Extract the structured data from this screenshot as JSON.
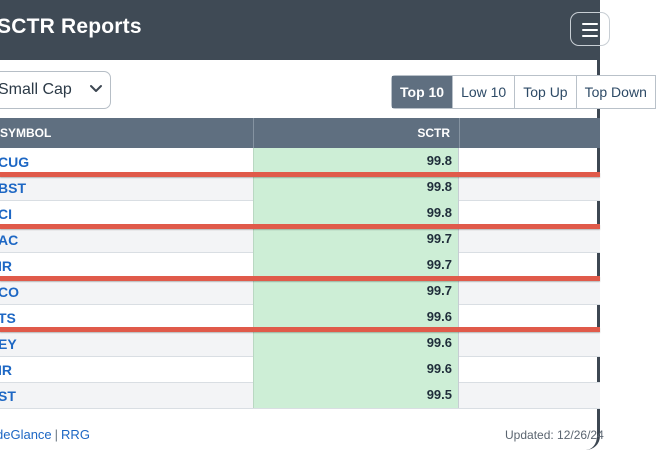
{
  "header": {
    "title": "SCTR Reports",
    "menu_icon": "hamburger-menu-icon"
  },
  "controls": {
    "category_select": {
      "value": "Small Cap"
    },
    "tabs": [
      "Top 10",
      "Low 10",
      "Top Up",
      "Top Down"
    ],
    "active_tab": "Top 10"
  },
  "table": {
    "columns": [
      "SYMBOL",
      "SCTR"
    ],
    "rows": [
      {
        "symbol": "CUG",
        "sctr": "99.8"
      },
      {
        "symbol": "BST",
        "sctr": "99.8"
      },
      {
        "symbol": "CI",
        "sctr": "99.8"
      },
      {
        "symbol": "AC",
        "sctr": "99.7"
      },
      {
        "symbol": "IR",
        "sctr": "99.7"
      },
      {
        "symbol": "CO",
        "sctr": "99.7"
      },
      {
        "symbol": "TS",
        "sctr": "99.6"
      },
      {
        "symbol": "EY",
        "sctr": "99.6"
      },
      {
        "symbol": "IR",
        "sctr": "99.6"
      },
      {
        "symbol": "ST",
        "sctr": "99.5"
      }
    ],
    "highlight_color": "#e05a4a",
    "score_cell_color": "#cdeed6"
  },
  "footer": {
    "links": [
      "deGlance",
      "RRG"
    ],
    "separator": "|",
    "updated": "Updated: 12/26/24"
  }
}
